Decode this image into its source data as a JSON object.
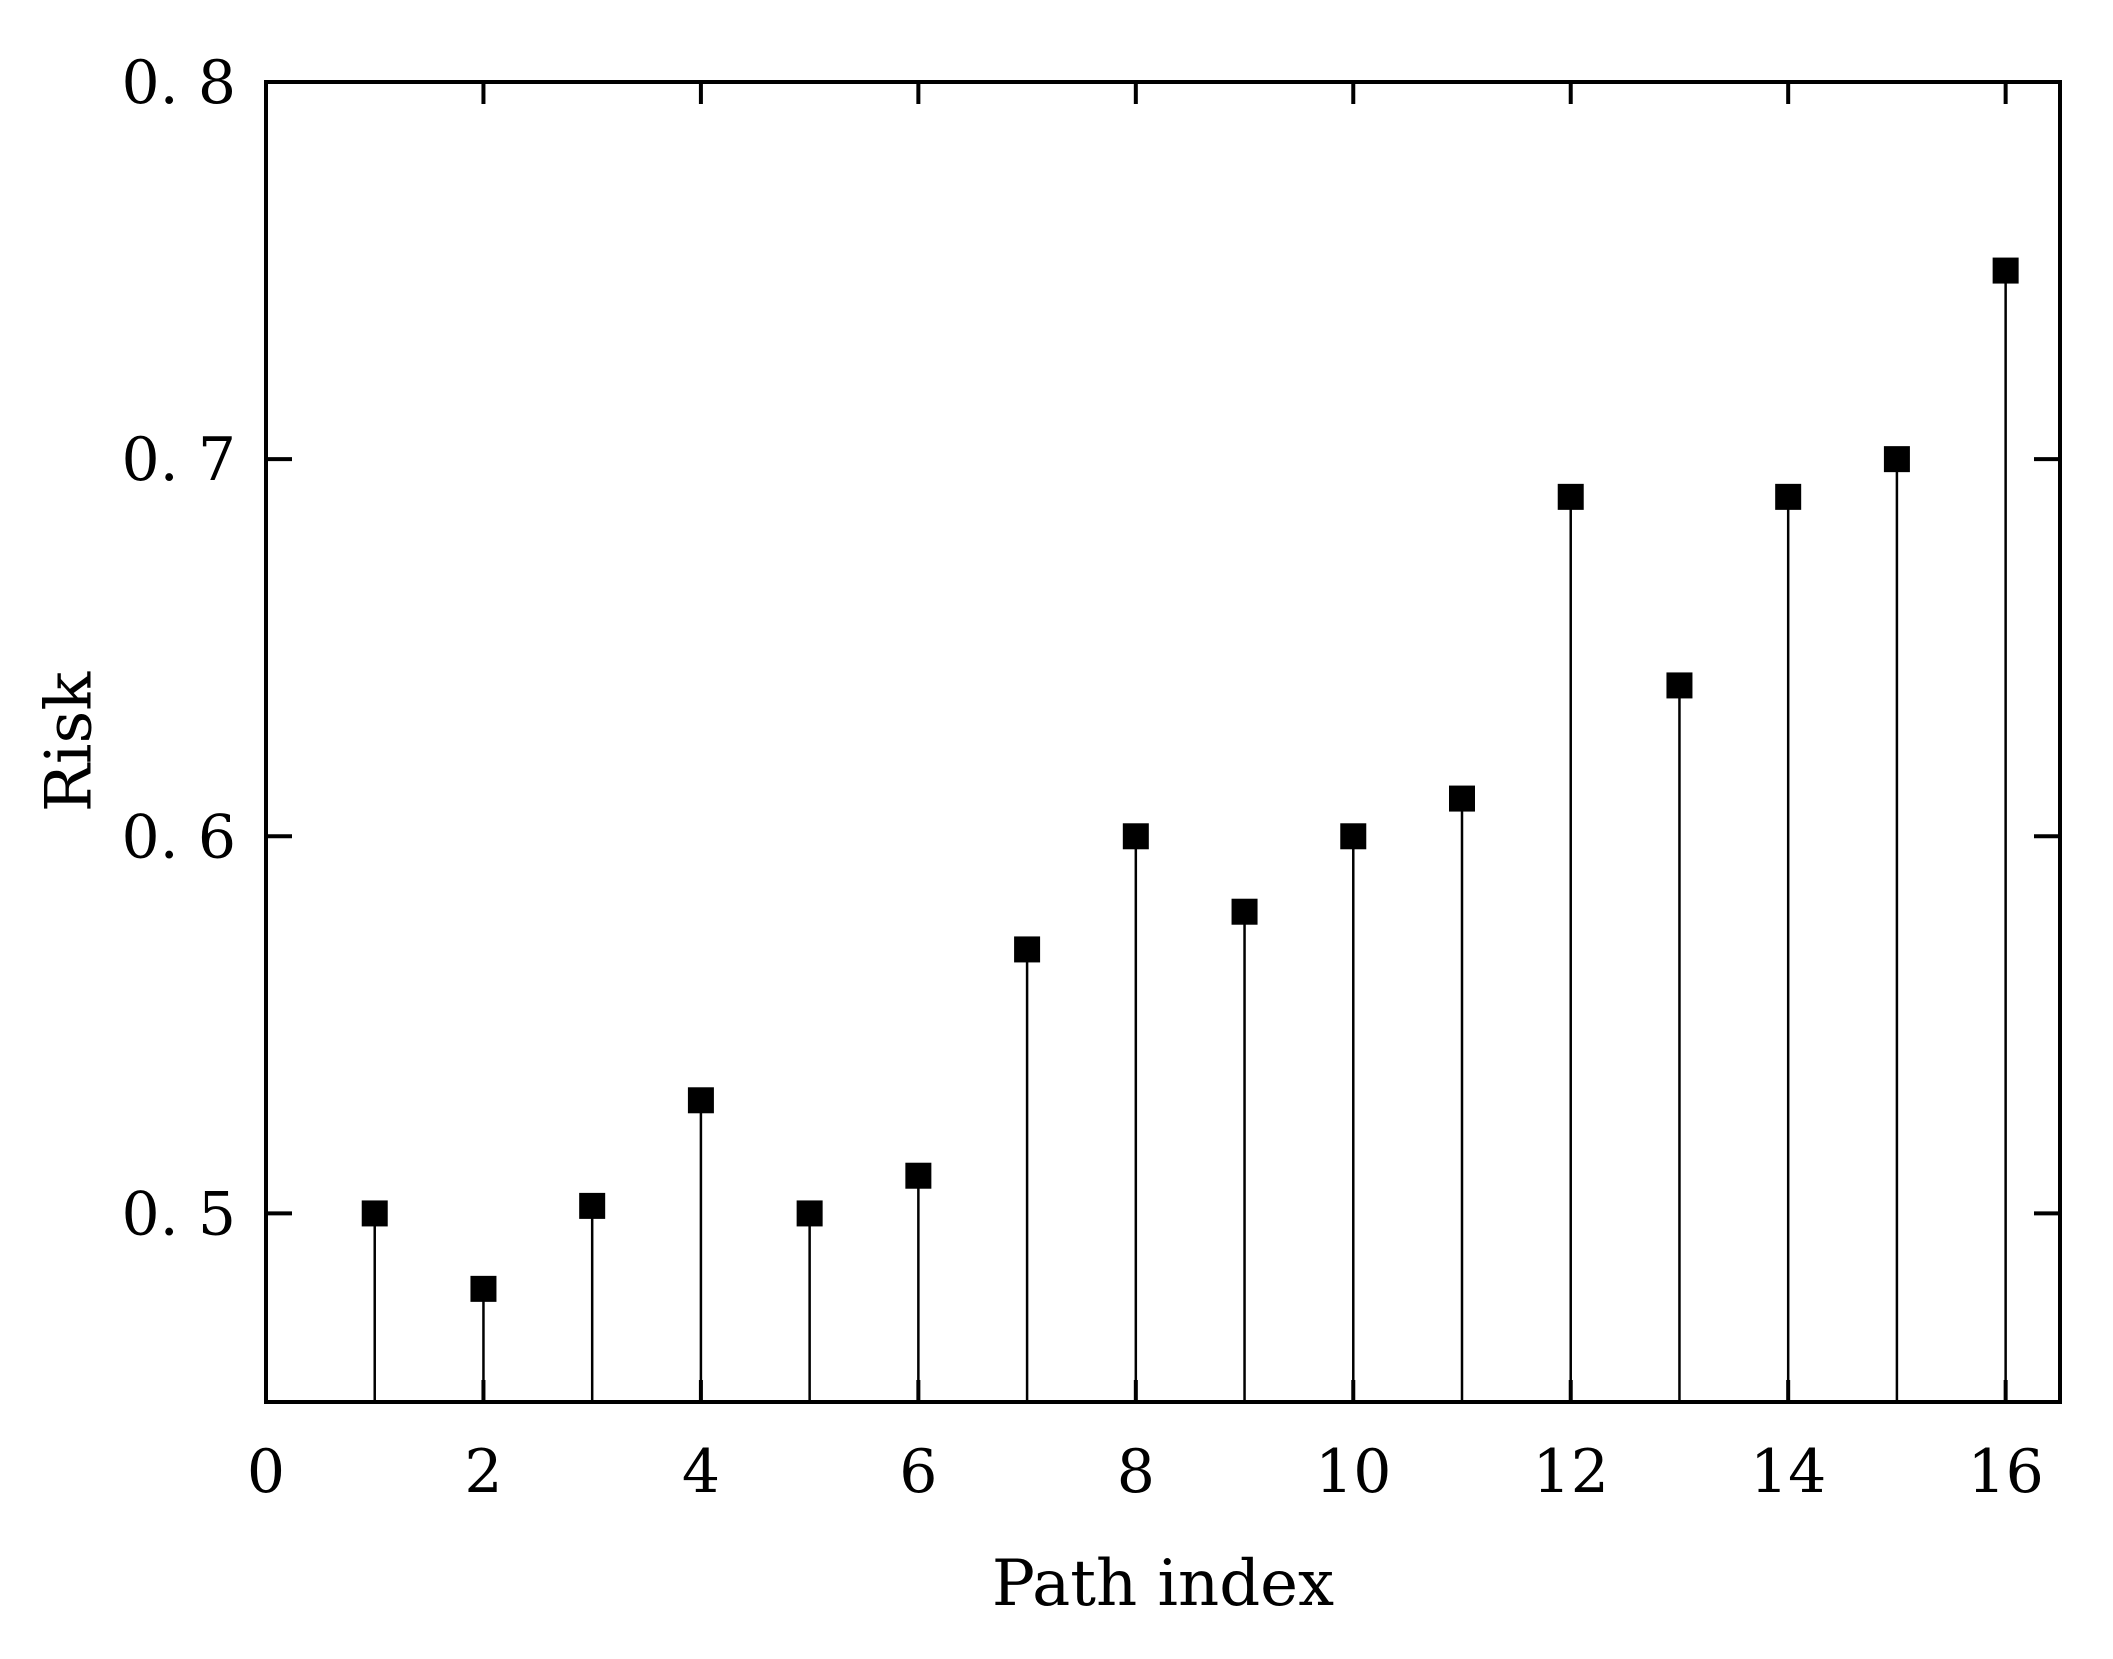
{
  "chart_data": {
    "type": "stem",
    "title": "",
    "xlabel": "Path index",
    "ylabel": "Risk",
    "xlim": [
      0,
      16.5
    ],
    "ylim": [
      0.45,
      0.8
    ],
    "x_ticks": [
      0,
      2,
      4,
      6,
      8,
      10,
      12,
      14,
      16
    ],
    "x_tick_labels": [
      "0",
      "2",
      "4",
      "6",
      "8",
      "10",
      "12",
      "14",
      "16"
    ],
    "y_ticks": [
      0.5,
      0.6,
      0.7,
      0.8
    ],
    "y_tick_labels": [
      "0. 5",
      "0. 6",
      "0. 7",
      "0. 8"
    ],
    "grid": false,
    "legend": "none",
    "marker": "square",
    "color": "#000000",
    "series": [
      {
        "x": [
          1,
          2,
          3,
          4,
          5,
          6,
          7,
          8,
          9,
          10,
          11,
          12,
          13,
          14,
          15,
          16
        ],
        "values": [
          0.5,
          0.48,
          0.502,
          0.53,
          0.5,
          0.51,
          0.57,
          0.6,
          0.58,
          0.6,
          0.61,
          0.69,
          0.64,
          0.69,
          0.7,
          0.75
        ]
      }
    ]
  }
}
